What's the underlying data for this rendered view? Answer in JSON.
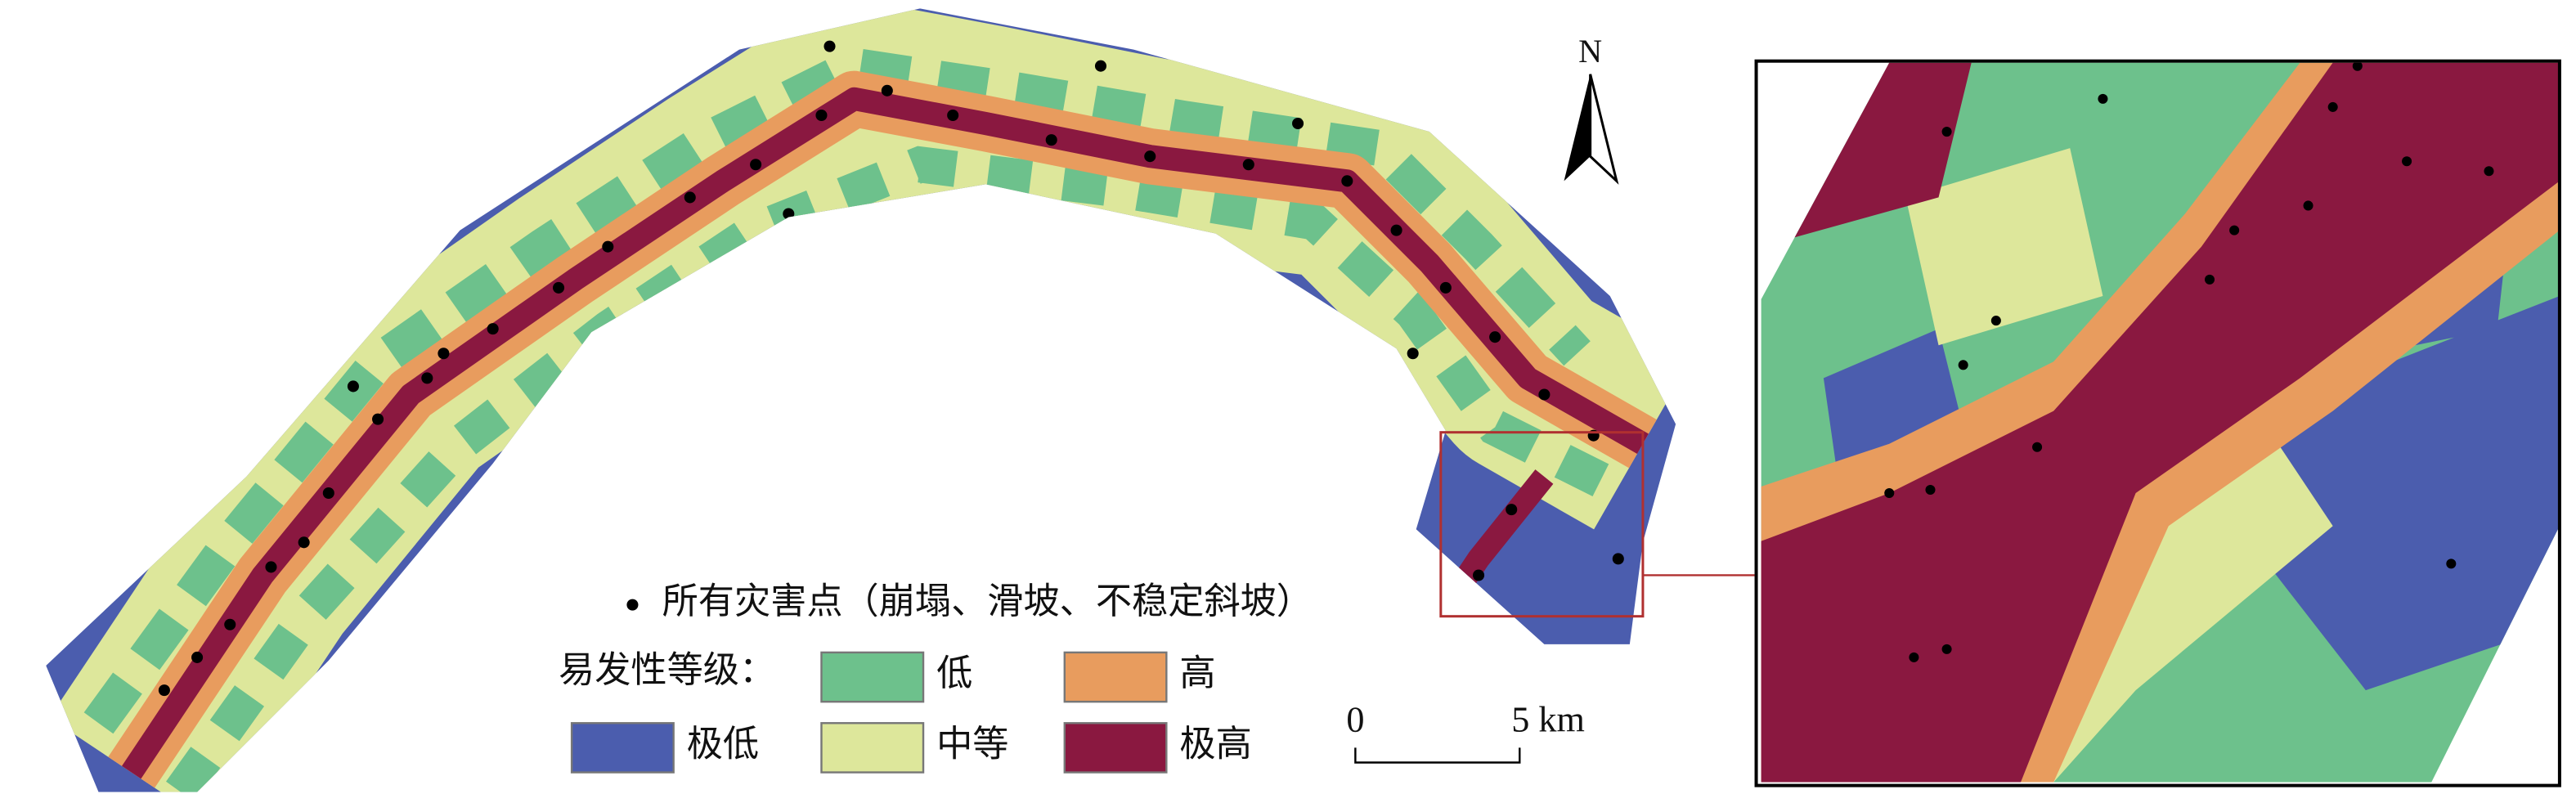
{
  "north_label": "N",
  "legend": {
    "points_label": "所有灾害点（崩塌、滑坡、不稳定斜坡）",
    "classes_title": "易发性等级：",
    "classes": [
      {
        "label": "极低",
        "color": "#4b5dae"
      },
      {
        "label": "低",
        "color": "#6dc18c"
      },
      {
        "label": "中等",
        "color": "#dde79b"
      },
      {
        "label": "高",
        "color": "#e89c5e"
      },
      {
        "label": "极高",
        "color": "#8a1840"
      }
    ]
  },
  "scale_bar": {
    "start": "0",
    "end": "5 km"
  }
}
